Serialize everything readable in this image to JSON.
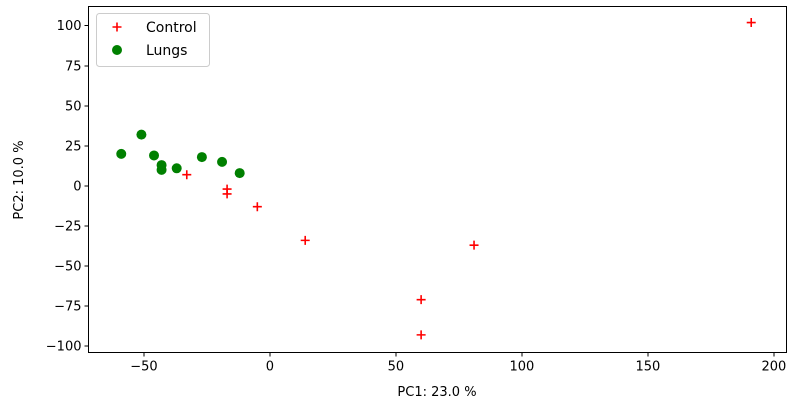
{
  "chart_data": {
    "type": "scatter",
    "xlabel": "PC1: 23.0 %",
    "ylabel": "PC2: 10.0 %",
    "xlim": [
      -72,
      205
    ],
    "ylim": [
      -104,
      112
    ],
    "xticks": [
      -50,
      0,
      50,
      100,
      150,
      200
    ],
    "yticks": [
      -100,
      -75,
      -50,
      -25,
      0,
      25,
      50,
      75,
      100
    ],
    "grid": false,
    "legend_position": "upper-left",
    "series": [
      {
        "name": "Control",
        "marker": "plus",
        "color": "#ff0000",
        "points": [
          [
            191,
            102
          ],
          [
            -33,
            7
          ],
          [
            -17,
            -2
          ],
          [
            -17,
            -5
          ],
          [
            -5,
            -13
          ],
          [
            14,
            -34
          ],
          [
            81,
            -37
          ],
          [
            60,
            -71
          ],
          [
            60,
            -93
          ]
        ]
      },
      {
        "name": "Lungs",
        "marker": "circle",
        "color": "#008000",
        "points": [
          [
            -51,
            32
          ],
          [
            -59,
            20
          ],
          [
            -46,
            19
          ],
          [
            -43,
            13
          ],
          [
            -43,
            10
          ],
          [
            -37,
            11
          ],
          [
            -27,
            18
          ],
          [
            -19,
            15
          ],
          [
            -12,
            8
          ]
        ]
      }
    ]
  }
}
